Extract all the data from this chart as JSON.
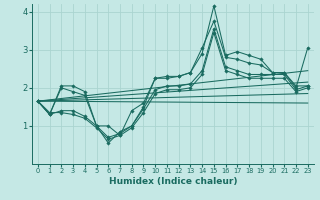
{
  "title": "",
  "xlabel": "Humidex (Indice chaleur)",
  "ylabel": "",
  "xlim": [
    -0.5,
    23.5
  ],
  "ylim": [
    0,
    4.2
  ],
  "xticks": [
    0,
    1,
    2,
    3,
    4,
    5,
    6,
    7,
    8,
    9,
    10,
    11,
    12,
    13,
    14,
    15,
    16,
    17,
    18,
    19,
    20,
    21,
    22,
    23
  ],
  "yticks": [
    1,
    2,
    3,
    4
  ],
  "bg_color": "#c5e8e5",
  "grid_color": "#aad4d0",
  "line_color": "#1a6b60",
  "series": [
    [
      1.65,
      1.3,
      2.05,
      2.05,
      1.9,
      1.0,
      0.55,
      0.85,
      1.0,
      1.5,
      2.25,
      2.25,
      2.3,
      2.4,
      2.9,
      4.15,
      2.85,
      2.95,
      2.85,
      2.75,
      2.4,
      2.4,
      2.0,
      3.05
    ],
    [
      1.65,
      1.3,
      2.0,
      1.9,
      1.8,
      1.0,
      1.0,
      0.75,
      1.4,
      1.6,
      2.25,
      2.3,
      2.3,
      2.4,
      3.05,
      3.75,
      2.8,
      2.75,
      2.65,
      2.6,
      2.4,
      2.4,
      2.05,
      2.05
    ],
    [
      1.65,
      1.3,
      1.4,
      1.4,
      1.25,
      1.0,
      0.7,
      0.8,
      1.0,
      1.45,
      1.95,
      2.05,
      2.05,
      2.1,
      2.45,
      3.55,
      2.55,
      2.45,
      2.35,
      2.35,
      2.35,
      2.35,
      1.95,
      2.05
    ],
    [
      1.65,
      1.35,
      1.35,
      1.3,
      1.2,
      0.95,
      0.65,
      0.75,
      0.95,
      1.35,
      1.85,
      1.95,
      1.95,
      2.0,
      2.35,
      3.45,
      2.45,
      2.35,
      2.25,
      2.25,
      2.25,
      2.25,
      1.9,
      2.0
    ]
  ],
  "trend_lines": [
    {
      "x": [
        0,
        23
      ],
      "y": [
        1.65,
        2.45
      ]
    },
    {
      "x": [
        0,
        23
      ],
      "y": [
        1.65,
        2.15
      ]
    },
    {
      "x": [
        0,
        23
      ],
      "y": [
        1.65,
        1.85
      ]
    },
    {
      "x": [
        0,
        23
      ],
      "y": [
        1.65,
        1.6
      ]
    }
  ],
  "figsize": [
    3.2,
    2.0
  ],
  "dpi": 100
}
